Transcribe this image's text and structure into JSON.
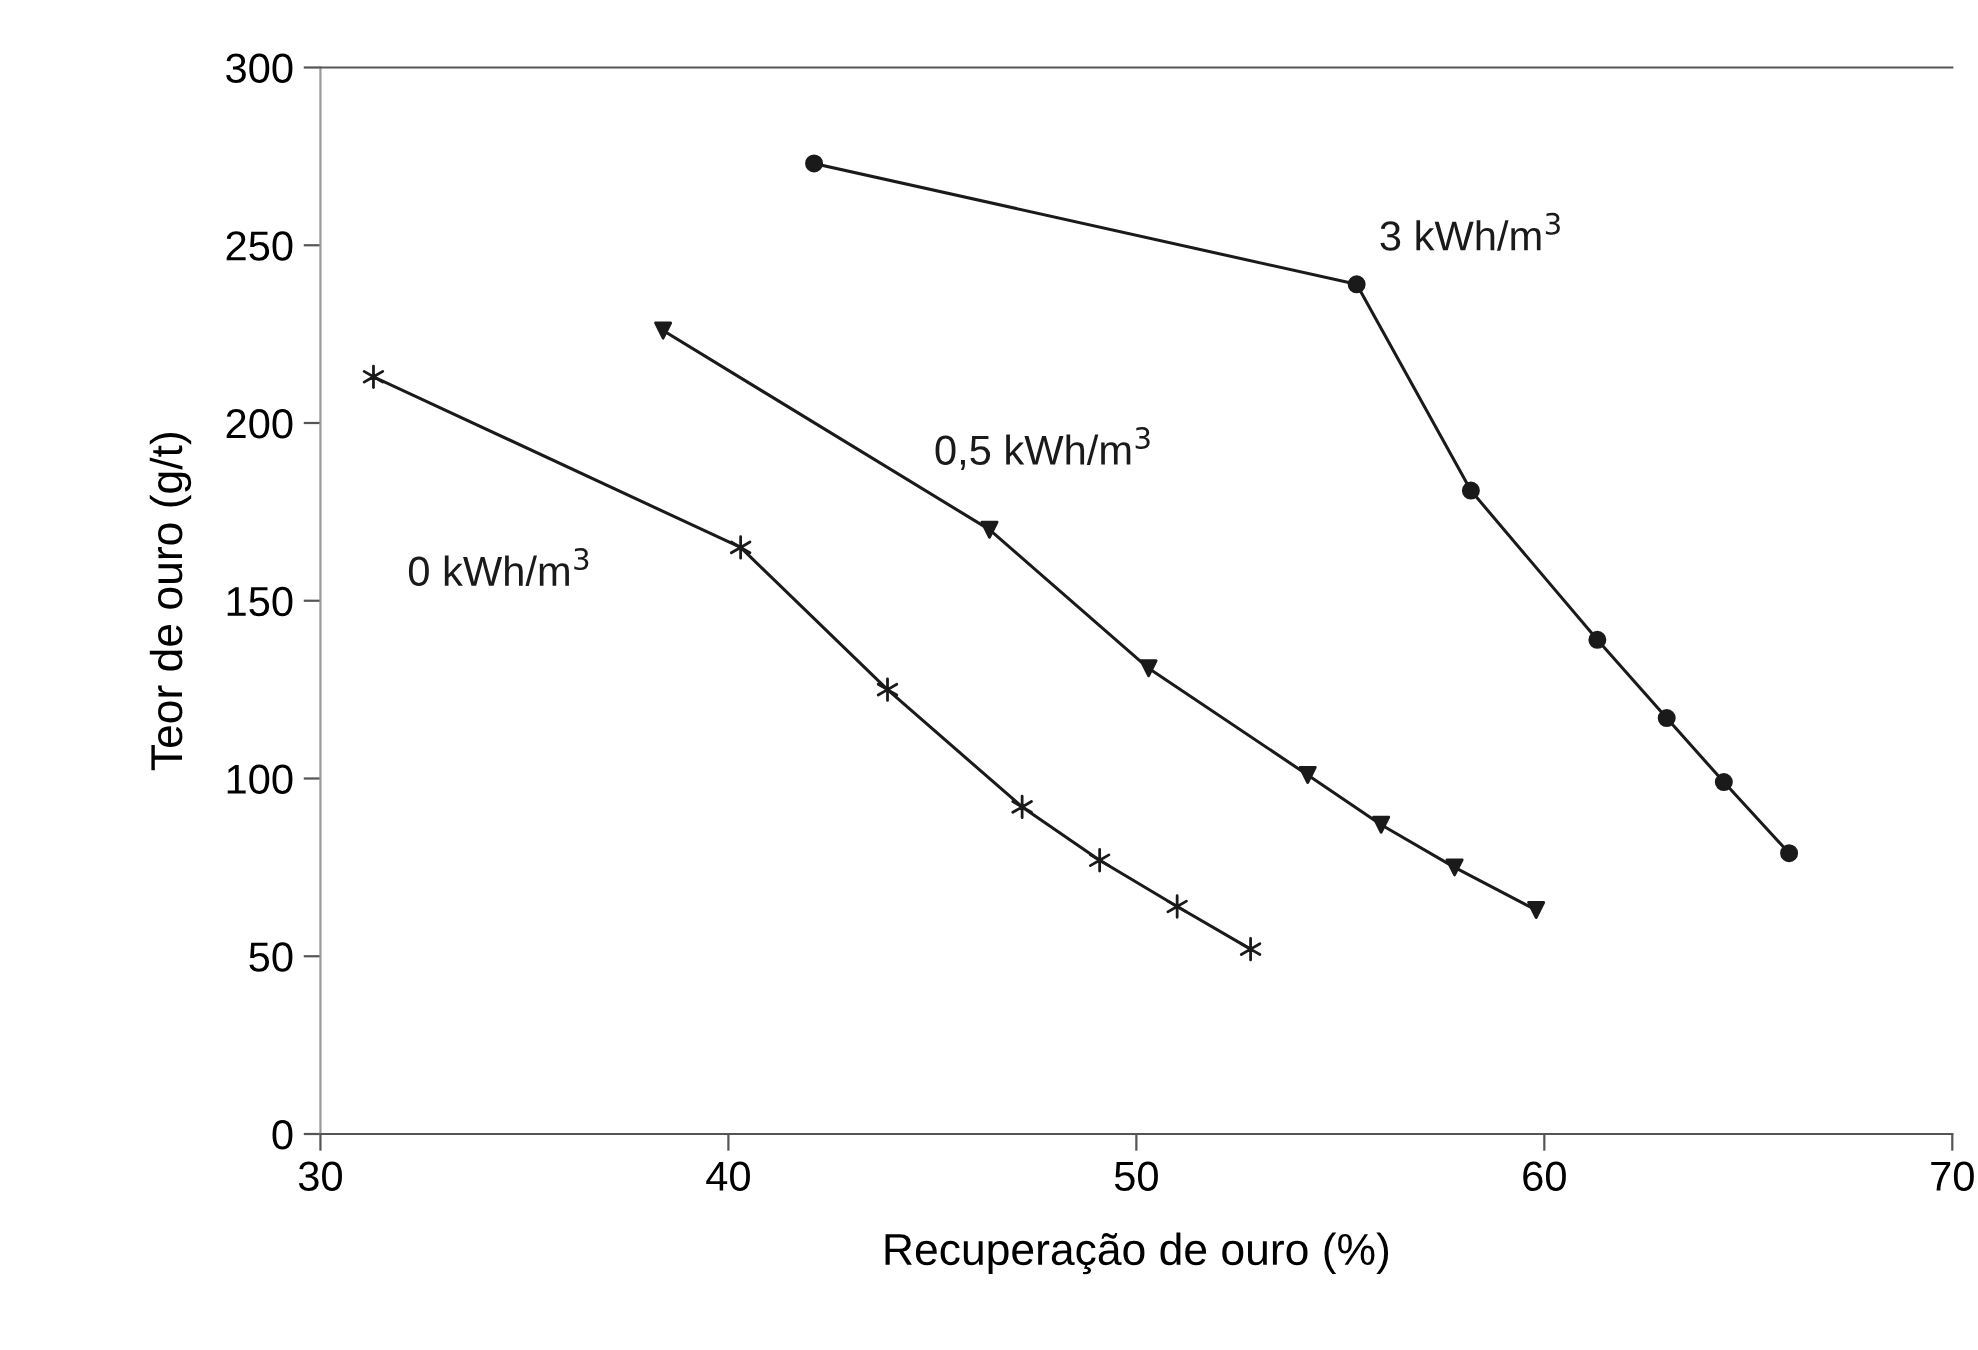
{
  "chart_data": {
    "type": "line",
    "xlabel": "Recuperação de ouro (%)",
    "ylabel": "Teor de ouro (g/t)",
    "xlim": [
      30,
      70
    ],
    "xticks": [
      30,
      40,
      50,
      60,
      70
    ],
    "ylim": [
      0,
      300
    ],
    "yticks": [
      0,
      50,
      100,
      150,
      200,
      250,
      300
    ],
    "grid": false,
    "legend": false,
    "line_style": "solid",
    "series": [
      {
        "name": "0 kWh/m$^{3}$",
        "color": "#1a1a1a",
        "marker": "cross",
        "x": [
          31.3,
          40.3,
          43.9,
          47.2,
          49.1,
          51.0,
          52.8
        ],
        "values": [
          213,
          165,
          125,
          92,
          77,
          64,
          52
        ]
      },
      {
        "name": "0,5 kWh/m$^{3}$",
        "color": "#1a1a1a",
        "marker": "triangle",
        "x": [
          38.4,
          46.4,
          50.3,
          54.2,
          56.0,
          57.8,
          59.8
        ],
        "values": [
          226,
          170,
          131,
          101,
          87,
          75,
          63
        ]
      },
      {
        "name": "3 kWh/m$^{3}$",
        "color": "#1a1a1a",
        "marker": "circle",
        "x": [
          42.1,
          55.4,
          58.2,
          61.3,
          63.0,
          64.4,
          66.0
        ],
        "values": [
          273,
          239,
          181,
          139,
          117,
          99,
          79
        ]
      }
    ]
  }
}
